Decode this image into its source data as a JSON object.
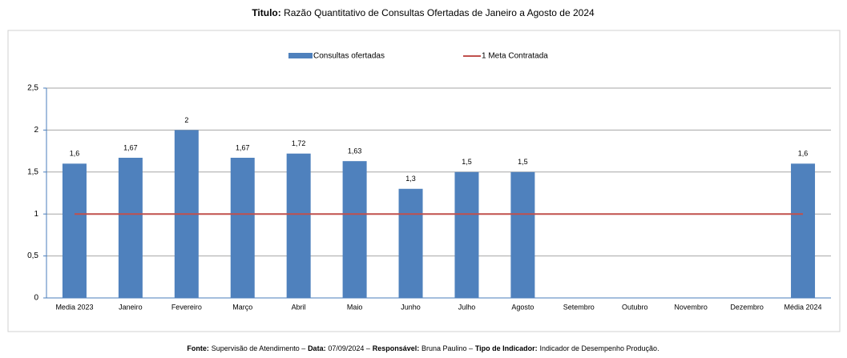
{
  "chart_data": {
    "type": "bar",
    "title_label": "Titulo:",
    "title": "Razão Quantitativo de Consultas Ofertadas de Janeiro a Agosto de 2024",
    "categories": [
      "Media 2023",
      "Janeiro",
      "Fevereiro",
      "Março",
      "Abril",
      "Maio",
      "Junho",
      "Julho",
      "Agosto",
      "Setembro",
      "Outubro",
      "Novembro",
      "Dezembro",
      "Média 2024"
    ],
    "series": [
      {
        "name": "Consultas ofertadas",
        "type": "bar",
        "color": "#4f81bd",
        "values": [
          1.6,
          1.67,
          2,
          1.67,
          1.72,
          1.63,
          1.3,
          1.5,
          1.5,
          null,
          null,
          null,
          null,
          1.6
        ],
        "value_labels": [
          "1,6",
          "1,67",
          "2",
          "1,67",
          "1,72",
          "1,63",
          "1,3",
          "1,5",
          "1,5",
          null,
          null,
          null,
          null,
          "1,6"
        ]
      },
      {
        "name": "1 Meta Contratada",
        "type": "line",
        "color": "#c0504d",
        "values": [
          1,
          1,
          1,
          1,
          1,
          1,
          1,
          1,
          1,
          1,
          1,
          1,
          1,
          1
        ]
      }
    ],
    "ylim": [
      0,
      2.5
    ],
    "yticks": [
      0,
      {
        "value": 0.5,
        "label": "0,5"
      },
      1,
      {
        "value": 1.5,
        "label": "1,5"
      },
      2,
      {
        "value": 2.5,
        "label": "2,5"
      }
    ],
    "grid": true,
    "legend": "top",
    "footer": [
      {
        "label": "Fonte:",
        "text": "Supervisão de Atendimento –"
      },
      {
        "label": "Data:",
        "text": "07/09/2024 –"
      },
      {
        "label": "Responsável:",
        "text": "Bruna Paulino –"
      },
      {
        "label": "Tipo de Indicador:",
        "text": "Indicador de Desempenho Produção."
      }
    ]
  }
}
